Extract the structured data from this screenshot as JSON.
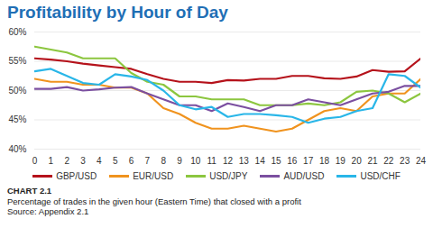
{
  "chart_data": {
    "type": "line",
    "title": "Profitability by Hour of Day",
    "caption": "CHART 2.1",
    "subtitle": "Percentage of trades in the given hour (Eastern Time) that closed with a profit",
    "source": "Source: Appendix 2.1",
    "x": [
      0,
      1,
      2,
      3,
      4,
      5,
      6,
      7,
      8,
      9,
      10,
      11,
      12,
      13,
      14,
      15,
      16,
      17,
      18,
      19,
      20,
      21,
      22,
      23,
      24
    ],
    "xlim": [
      0,
      24
    ],
    "xticks": [
      0,
      1,
      2,
      3,
      4,
      5,
      6,
      7,
      8,
      9,
      10,
      11,
      12,
      13,
      14,
      15,
      16,
      17,
      18,
      19,
      20,
      21,
      22,
      23,
      24
    ],
    "ylim": [
      40,
      60
    ],
    "yticks": [
      {
        "value": 40,
        "label": "40%"
      },
      {
        "value": 45,
        "label": "45%"
      },
      {
        "value": 50,
        "label": "50%"
      },
      {
        "value": 55,
        "label": "55%"
      },
      {
        "value": 60,
        "label": "60%"
      }
    ],
    "grid": true,
    "legend": "bottom",
    "series": [
      {
        "name": "GBP/USD",
        "color": "#b5121b",
        "values": [
          55.5,
          55.3,
          55,
          54.6,
          54.3,
          54,
          53.7,
          52.8,
          52,
          51.5,
          51.5,
          51.3,
          51.8,
          51.7,
          52,
          52,
          52.5,
          52.5,
          52.1,
          52,
          52.4,
          53.5,
          53.2,
          53.3,
          55.5
        ]
      },
      {
        "name": "EUR/USD",
        "color": "#f0931e",
        "values": [
          52,
          51.5,
          51.5,
          51,
          51,
          50.5,
          50.5,
          49.5,
          47,
          46,
          44.5,
          43.5,
          43.5,
          44,
          43.5,
          43,
          43.5,
          45,
          46.5,
          47,
          46.5,
          49,
          49.5,
          49.5,
          52
        ]
      },
      {
        "name": "USD/JPY",
        "color": "#8cc63f",
        "values": [
          57.5,
          57,
          56.5,
          55.5,
          55.5,
          55.5,
          53,
          51.5,
          51,
          49,
          49,
          48.5,
          48.5,
          48.5,
          47.5,
          47.5,
          47.5,
          47.8,
          47.5,
          48,
          49.8,
          50,
          49.5,
          48,
          49.5
        ]
      },
      {
        "name": "AUD/USD",
        "color": "#7b4fa0",
        "values": [
          50.3,
          50.3,
          50.6,
          50,
          50.2,
          50.5,
          50.6,
          49.5,
          48.5,
          47.5,
          47.5,
          46.5,
          47.8,
          47.2,
          46.5,
          47.5,
          47.5,
          48.5,
          48,
          47.5,
          48.5,
          49.5,
          49.8,
          50.8,
          50.8
        ]
      },
      {
        "name": "USD/CHF",
        "color": "#29b6e8",
        "values": [
          53.3,
          53.7,
          52.5,
          51.3,
          51,
          52.8,
          52.4,
          51.8,
          50,
          47.5,
          46.8,
          47.2,
          45.5,
          46,
          46,
          45.8,
          45.5,
          44.5,
          45.2,
          45.5,
          46.5,
          47,
          52.8,
          52.5,
          50.5
        ]
      }
    ]
  }
}
